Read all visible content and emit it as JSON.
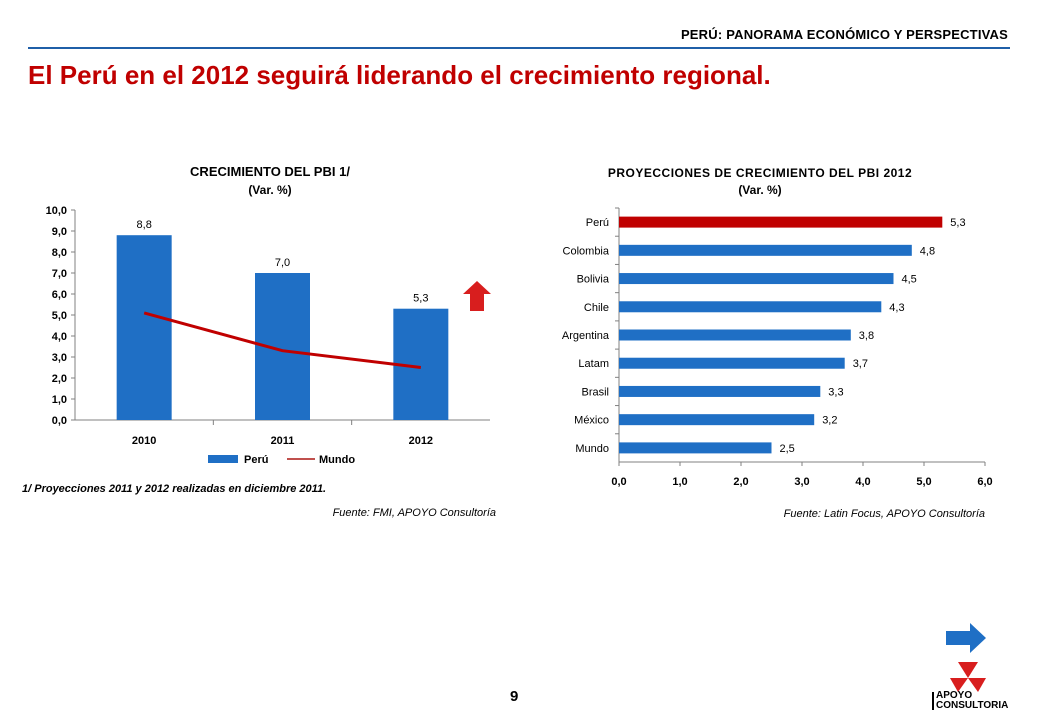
{
  "header": {
    "section": "PERÚ: PANORAMA ECONÓMICO Y PERSPECTIVAS"
  },
  "slide": {
    "title": "El Perú en el 2012 seguirá liderando el crecimiento regional.",
    "page_number": "9"
  },
  "colors": {
    "bar": "#1f6fc5",
    "highlight": "#c00000",
    "line": "#c00000",
    "accent": "#1f5fa8"
  },
  "icons": {
    "up_arrow": "up-arrow-icon",
    "next": "right-arrow-icon",
    "logo": "apoyo-consultoria-logo"
  },
  "logo": {
    "line1": "APOYO",
    "line2": "CONSULTORIA"
  },
  "chart_left": {
    "title": "CRECIMIENTO DEL PBI 1/",
    "subtitle": "(Var. %)",
    "note": "1/ Proyecciones 2011 y 2012 realizadas en diciembre 2011.",
    "source": "Fuente: FMI, APOYO Consultoría"
  },
  "chart_right": {
    "title": "PROYECCIONES DE CRECIMIENTO DEL PBI 2012",
    "subtitle": "(Var. %)",
    "source": "Fuente: Latin Focus, APOYO Consultoría"
  },
  "chart_data": [
    {
      "type": "bar",
      "title": "CRECIMIENTO DEL PBI 1/",
      "subtitle": "(Var. %)",
      "categories": [
        "2010",
        "2011",
        "2012"
      ],
      "series": [
        {
          "name": "Perú",
          "type": "bar",
          "values": [
            8.8,
            7.0,
            5.3
          ],
          "labels": [
            "8,8",
            "7,0",
            "5,3"
          ]
        },
        {
          "name": "Mundo",
          "type": "line",
          "values": [
            5.1,
            3.3,
            2.5
          ]
        }
      ],
      "yticks": [
        "0,0",
        "1,0",
        "2,0",
        "3,0",
        "4,0",
        "5,0",
        "6,0",
        "7,0",
        "8,0",
        "9,0",
        "10,0"
      ],
      "ylim": [
        0,
        10
      ],
      "legend": "bottom",
      "grid": false
    },
    {
      "type": "bar",
      "orientation": "horizontal",
      "title": "PROYECCIONES DE CRECIMIENTO DEL PBI 2012",
      "subtitle": "(Var. %)",
      "categories": [
        "Perú",
        "Colombia",
        "Bolivia",
        "Chile",
        "Argentina",
        "Latam",
        "Brasil",
        "México",
        "Mundo"
      ],
      "values": [
        5.3,
        4.8,
        4.5,
        4.3,
        3.8,
        3.7,
        3.3,
        3.2,
        2.5
      ],
      "labels": [
        "5,3",
        "4,8",
        "4,5",
        "4,3",
        "3,8",
        "3,7",
        "3,3",
        "3,2",
        "2,5"
      ],
      "highlight_index": 0,
      "xticks": [
        "0,0",
        "1,0",
        "2,0",
        "3,0",
        "4,0",
        "5,0",
        "6,0"
      ],
      "xlim": [
        0,
        6
      ],
      "grid": false
    }
  ]
}
